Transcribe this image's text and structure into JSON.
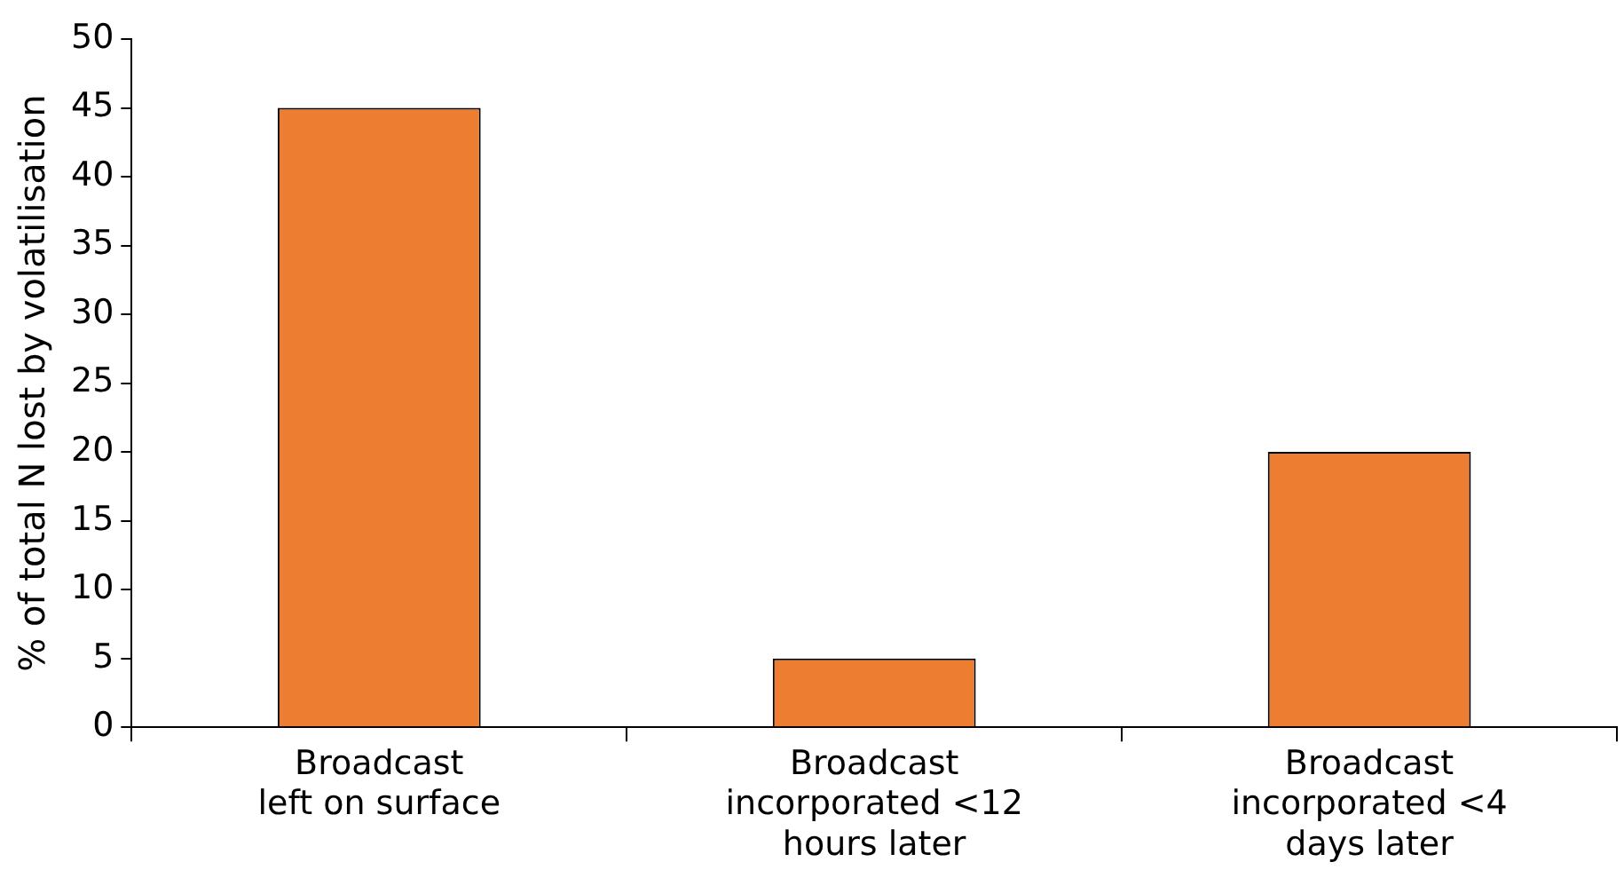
{
  "chart_data": {
    "type": "bar",
    "ylabel": "% of total N lost by volatilisation",
    "categories": [
      "Broadcast left on surface",
      "Broadcast incorporated <12 hours later",
      "Broadcast incorporated <4 days later"
    ],
    "values": [
      45,
      5,
      20
    ],
    "color": "#ed7d31",
    "ylim": [
      0,
      50
    ],
    "yticks": [
      0,
      5,
      10,
      15,
      20,
      25,
      30,
      35,
      40,
      45,
      50
    ],
    "grid": false,
    "legend": false
  }
}
